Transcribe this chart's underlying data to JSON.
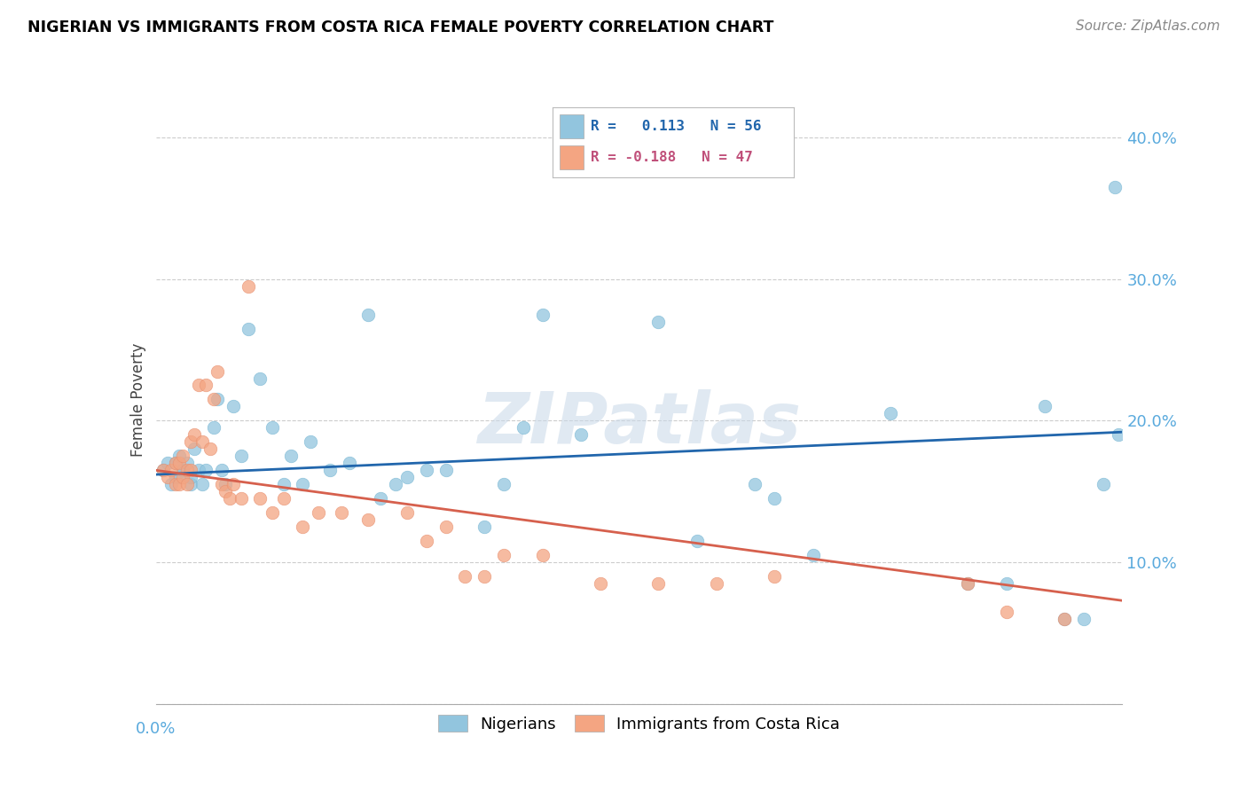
{
  "title": "NIGERIAN VS IMMIGRANTS FROM COSTA RICA FEMALE POVERTY CORRELATION CHART",
  "source": "Source: ZipAtlas.com",
  "ylabel": "Female Poverty",
  "y_ticks": [
    0.0,
    0.1,
    0.2,
    0.3,
    0.4
  ],
  "y_tick_labels": [
    "",
    "10.0%",
    "20.0%",
    "30.0%",
    "40.0%"
  ],
  "x_range": [
    0.0,
    0.25
  ],
  "y_range": [
    0.0,
    0.43
  ],
  "watermark": "ZIPatlas",
  "blue_color": "#92c5de",
  "pink_color": "#f4a582",
  "blue_line_color": "#2166ac",
  "pink_line_color": "#d6604d",
  "nigerians_x": [
    0.002,
    0.003,
    0.004,
    0.005,
    0.005,
    0.006,
    0.006,
    0.007,
    0.007,
    0.008,
    0.009,
    0.009,
    0.01,
    0.011,
    0.012,
    0.013,
    0.015,
    0.016,
    0.017,
    0.018,
    0.02,
    0.022,
    0.024,
    0.027,
    0.03,
    0.033,
    0.035,
    0.038,
    0.04,
    0.045,
    0.05,
    0.055,
    0.058,
    0.062,
    0.065,
    0.07,
    0.075,
    0.085,
    0.09,
    0.095,
    0.1,
    0.11,
    0.13,
    0.14,
    0.155,
    0.16,
    0.17,
    0.19,
    0.21,
    0.22,
    0.23,
    0.235,
    0.24,
    0.245,
    0.248,
    0.249
  ],
  "nigerians_y": [
    0.165,
    0.17,
    0.155,
    0.17,
    0.16,
    0.175,
    0.16,
    0.165,
    0.165,
    0.17,
    0.155,
    0.16,
    0.18,
    0.165,
    0.155,
    0.165,
    0.195,
    0.215,
    0.165,
    0.155,
    0.21,
    0.175,
    0.265,
    0.23,
    0.195,
    0.155,
    0.175,
    0.155,
    0.185,
    0.165,
    0.17,
    0.275,
    0.145,
    0.155,
    0.16,
    0.165,
    0.165,
    0.125,
    0.155,
    0.195,
    0.275,
    0.19,
    0.27,
    0.115,
    0.155,
    0.145,
    0.105,
    0.205,
    0.085,
    0.085,
    0.21,
    0.06,
    0.06,
    0.155,
    0.365,
    0.19
  ],
  "costa_rica_x": [
    0.002,
    0.003,
    0.004,
    0.005,
    0.005,
    0.006,
    0.006,
    0.007,
    0.007,
    0.008,
    0.008,
    0.009,
    0.009,
    0.01,
    0.011,
    0.012,
    0.013,
    0.014,
    0.015,
    0.016,
    0.017,
    0.018,
    0.019,
    0.02,
    0.022,
    0.024,
    0.027,
    0.03,
    0.033,
    0.038,
    0.042,
    0.048,
    0.055,
    0.065,
    0.07,
    0.075,
    0.08,
    0.085,
    0.09,
    0.1,
    0.115,
    0.13,
    0.145,
    0.16,
    0.21,
    0.22,
    0.235
  ],
  "costa_rica_y": [
    0.165,
    0.16,
    0.165,
    0.17,
    0.155,
    0.17,
    0.155,
    0.16,
    0.175,
    0.165,
    0.155,
    0.185,
    0.165,
    0.19,
    0.225,
    0.185,
    0.225,
    0.18,
    0.215,
    0.235,
    0.155,
    0.15,
    0.145,
    0.155,
    0.145,
    0.295,
    0.145,
    0.135,
    0.145,
    0.125,
    0.135,
    0.135,
    0.13,
    0.135,
    0.115,
    0.125,
    0.09,
    0.09,
    0.105,
    0.105,
    0.085,
    0.085,
    0.085,
    0.09,
    0.085,
    0.065,
    0.06
  ]
}
